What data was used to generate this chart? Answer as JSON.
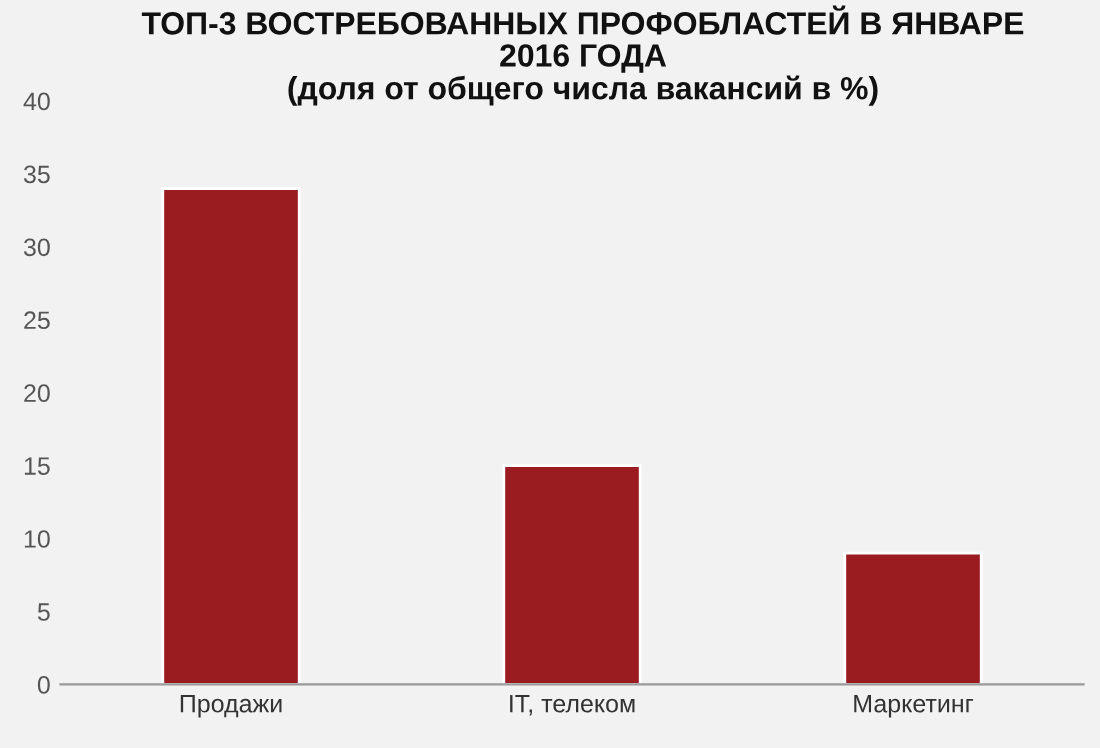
{
  "chart_data": {
    "type": "bar",
    "title": "ТОП-3 ВОСТРЕБОВАННЫХ ПРОФОБЛАСТЕЙ В ЯНВАРЕ\n2016 ГОДА\n(доля от общего числа вакансий в %)",
    "categories": [
      "Продажи",
      "IT, телеком",
      "Маркетинг"
    ],
    "values": [
      34,
      15,
      9
    ],
    "color": "#9b1c20",
    "ylim": [
      0,
      40
    ],
    "yticks": [
      0,
      5,
      10,
      15,
      20,
      25,
      30,
      35,
      40
    ],
    "grid": false,
    "legend": false
  }
}
